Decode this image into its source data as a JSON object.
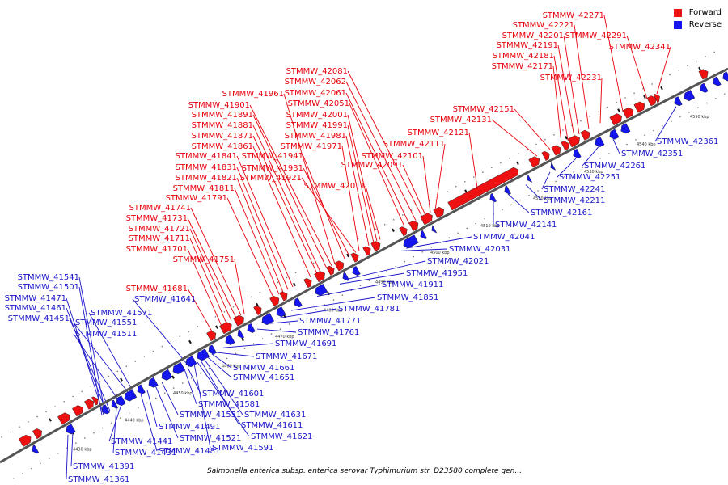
{
  "legend": {
    "forward_label": "Forward",
    "reverse_label": "Reverse",
    "forward_color": "#ee1111",
    "reverse_color": "#1515ee"
  },
  "caption": "Salmonella enterica subsp. enterica serovar Typhimurium str. D23580 complete gen...",
  "axis_ticks": [
    "4430 kbp",
    "4440 kbp",
    "4450 kbp",
    "4460 kbp",
    "4470 kbp",
    "4480 kbp",
    "4490 kbp",
    "4500 kbp",
    "4510 kbp",
    "4520 kbp",
    "4530 kbp",
    "4540 kbp",
    "4550 kbp"
  ],
  "forward_genes": [
    "STMMW_41681",
    "STMMW_41701",
    "STMMW_41711",
    "STMMW_41721",
    "STMMW_41731",
    "STMMW_41741",
    "STMMW_41751",
    "STMMW_41791",
    "STMMW_41811",
    "STMMW_41821",
    "STMMW_41831",
    "STMMW_41841",
    "STMMW_41861",
    "STMMW_41871",
    "STMMW_41881",
    "STMMW_41891",
    "STMMW_41901",
    "STMMW_41961",
    "STMMW_41941",
    "STMMW_41931",
    "STMMW_41921",
    "STMMW_41971",
    "STMMW_41981",
    "STMMW_41991",
    "STMMW_42001",
    "STMMW_42011",
    "STMMW_42051",
    "STMMW_42061",
    "STMMW_42062",
    "STMMW_42081",
    "STMMW_42091",
    "STMMW_42101",
    "STMMW_42111",
    "STMMW_42121",
    "STMMW_42131",
    "STMMW_42151",
    "STMMW_42171",
    "STMMW_42181",
    "STMMW_42191",
    "STMMW_42201",
    "STMMW_42221",
    "STMMW_42231",
    "STMMW_42271",
    "STMMW_42291",
    "STMMW_42341"
  ],
  "reverse_genes": [
    "STMMW_41541",
    "STMMW_41501",
    "STMMW_41471",
    "STMMW_41461",
    "STMMW_41451",
    "STMMW_41571",
    "STMMW_41551",
    "STMMW_41511",
    "STMMW_41641",
    "STMMW_41361",
    "STMMW_41391",
    "STMMW_41431",
    "STMMW_41441",
    "STMMW_41481",
    "STMMW_41491",
    "STMMW_41521",
    "STMMW_41531",
    "STMMW_41581",
    "STMMW_41601",
    "STMMW_41591",
    "STMMW_41621",
    "STMMW_41611",
    "STMMW_41631",
    "STMMW_41651",
    "STMMW_41661",
    "STMMW_41671",
    "STMMW_41691",
    "STMMW_41761",
    "STMMW_41771",
    "STMMW_41781",
    "STMMW_41851",
    "STMMW_41911",
    "STMMW_41951",
    "STMMW_42021",
    "STMMW_42031",
    "STMMW_42041",
    "STMMW_42141",
    "STMMW_42161",
    "STMMW_42211",
    "STMMW_42241",
    "STMMW_42251",
    "STMMW_42261",
    "STMMW_42351",
    "STMMW_42361"
  ]
}
